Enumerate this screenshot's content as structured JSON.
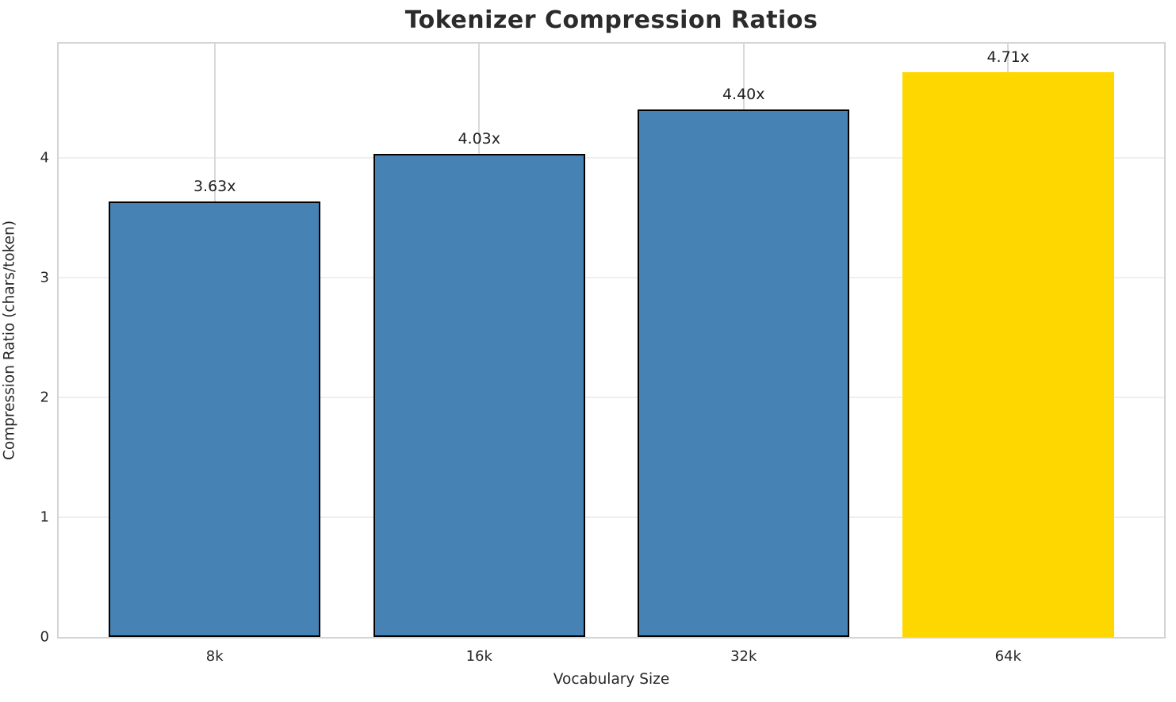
{
  "chart_data": {
    "type": "bar",
    "title": "Tokenizer Compression Ratios",
    "xlabel": "Vocabulary Size",
    "ylabel": "Compression Ratio (chars/token)",
    "categories": [
      "8k",
      "16k",
      "32k",
      "64k"
    ],
    "values": [
      3.63,
      4.03,
      4.4,
      4.71
    ],
    "bar_labels": [
      "3.63x",
      "4.03x",
      "4.40x",
      "4.71x"
    ],
    "yticks": [
      0,
      1,
      2,
      3,
      4
    ],
    "ylim": [
      0,
      4.95
    ],
    "grid": true,
    "legend_position": "none",
    "colors": {
      "bar_default": "#4682B4",
      "bar_highlight": "#FFD700",
      "highlight_index": 3,
      "bar_edge": "#000000",
      "grid_horizontal": "#efefef",
      "grid_vertical": "#d9d9d9",
      "spine": "#d4d4d4",
      "title_text": "#2b2b2b",
      "tick_text": "#262626"
    }
  }
}
